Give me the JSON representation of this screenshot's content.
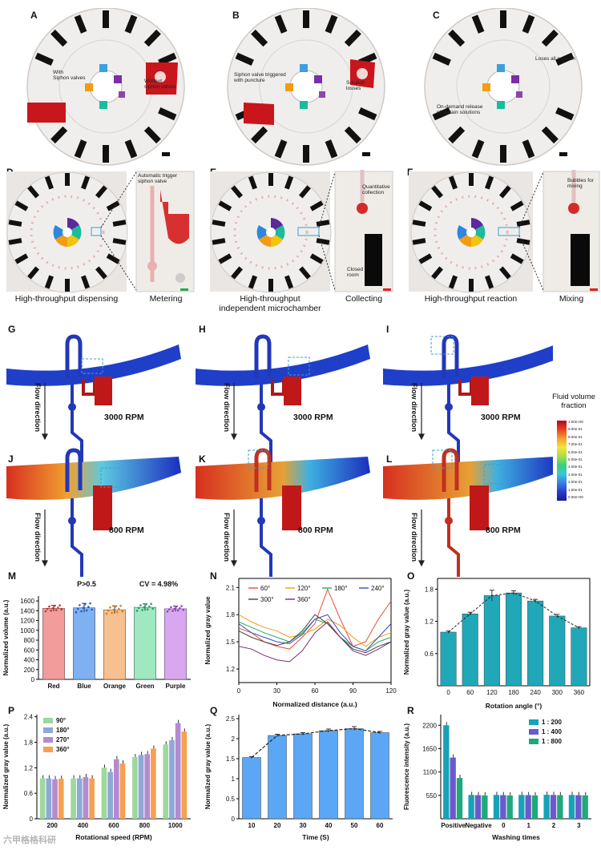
{
  "figure": {
    "panel_labels": [
      "A",
      "B",
      "C",
      "D",
      "E",
      "F",
      "G",
      "H",
      "I",
      "J",
      "K",
      "L",
      "M",
      "N",
      "O",
      "P",
      "Q",
      "R"
    ],
    "top": {
      "a_ann_left": "With\nSiphon valves",
      "a_ann_right": "Without\nsiphon valves",
      "b_ann_left": "Siphon valve triggered\nwith puncture",
      "b_ann_right": "Solution\nlosses",
      "c_ann_right": "Loses all solution",
      "c_ann_left": "On-demand release\nof certain solutions"
    },
    "middle": {
      "d_zoom_ann": "Automatic trigger\nsiphon valve",
      "e_zoom_ann_top": "Quantitative\ncollection",
      "e_zoom_ann_bottom": "Closed\nroom",
      "f_zoom_ann": "Bubbles for\nmixing",
      "captions": [
        "High-throughput dispensing",
        "Metering",
        "High-throughput\nindependent microchamber",
        "Collecting",
        "High-throughput reaction",
        "Mixing"
      ]
    },
    "sim": {
      "rpm_high": "3000 RPM",
      "rpm_low": "800 RPM",
      "flow": "Flow direction",
      "legend_title": "Fluid volume\nfraction",
      "legend_ticks": [
        "1.00e+00",
        "9.00e-01",
        "8.00e-01",
        "7.00e-01",
        "6.00e-01",
        "5.00e-01",
        "4.00e-01",
        "3.00e-01",
        "2.00e-01",
        "1.00e-01",
        "0.00e+00"
      ]
    },
    "watermark": "六甲格格科研"
  },
  "chart_data": [
    {
      "panel": "M",
      "type": "bar",
      "categories": [
        "Red",
        "Blue",
        "Orange",
        "Green",
        "Purple"
      ],
      "values": [
        1450,
        1460,
        1420,
        1470,
        1440
      ],
      "errors": [
        60,
        90,
        80,
        70,
        55
      ],
      "colors": [
        "#f29c9c",
        "#7eb0f2",
        "#f6c08f",
        "#9fe8c0",
        "#d9a7ef"
      ],
      "ylabel": "Normalized volume (a.u.)",
      "yticks": [
        0,
        200,
        400,
        600,
        800,
        1000,
        1200,
        1400,
        1600
      ],
      "ylim": [
        0,
        1700
      ],
      "annotations": [
        "P>0.5",
        "CV = 4.98%"
      ]
    },
    {
      "panel": "N",
      "type": "line",
      "x": [
        0,
        10,
        20,
        30,
        40,
        50,
        60,
        70,
        80,
        90,
        100,
        110,
        120
      ],
      "series": [
        {
          "name": "60°",
          "color": "#e74c3c",
          "values": [
            1.65,
            1.6,
            1.5,
            1.45,
            1.42,
            1.55,
            1.7,
            2.08,
            1.75,
            1.45,
            1.5,
            1.75,
            1.95
          ]
        },
        {
          "name": "120°",
          "color": "#f39c12",
          "values": [
            1.8,
            1.72,
            1.66,
            1.62,
            1.55,
            1.58,
            1.64,
            1.75,
            1.68,
            1.55,
            1.45,
            1.55,
            1.6
          ]
        },
        {
          "name": "180°",
          "color": "#27ae60",
          "values": [
            1.72,
            1.66,
            1.6,
            1.55,
            1.5,
            1.6,
            1.75,
            1.7,
            1.55,
            1.45,
            1.4,
            1.5,
            1.55
          ]
        },
        {
          "name": "240°",
          "color": "#3b4cc0",
          "values": [
            1.7,
            1.6,
            1.55,
            1.5,
            1.48,
            1.58,
            1.75,
            1.8,
            1.6,
            1.45,
            1.4,
            1.55,
            1.7
          ]
        },
        {
          "name": "300°",
          "color": "#444444",
          "values": [
            1.62,
            1.55,
            1.5,
            1.46,
            1.5,
            1.62,
            1.8,
            1.7,
            1.55,
            1.42,
            1.38,
            1.45,
            1.5
          ]
        },
        {
          "name": "360°",
          "color": "#7a2e7a",
          "values": [
            1.45,
            1.42,
            1.35,
            1.3,
            1.28,
            1.4,
            1.6,
            1.72,
            1.55,
            1.4,
            1.35,
            1.42,
            1.5
          ]
        }
      ],
      "xlabel": "Normalized distance (a.u.)",
      "ylabel": "Normalized gray value",
      "xticks": [
        0,
        30,
        60,
        90,
        120
      ],
      "yticks": [
        1.2,
        1.5,
        1.8,
        2.1
      ],
      "xlim": [
        0,
        120
      ],
      "ylim": [
        1.05,
        2.2
      ]
    },
    {
      "panel": "O",
      "type": "bar",
      "categories": [
        "0",
        "60",
        "120",
        "180",
        "240",
        "300",
        "360"
      ],
      "values": [
        1.0,
        1.34,
        1.68,
        1.73,
        1.58,
        1.3,
        1.08
      ],
      "errors": [
        0.02,
        0.03,
        0.1,
        0.04,
        0.03,
        0.03,
        0.02
      ],
      "color": "#20a8b8",
      "xlabel": "Rotation angle (°)",
      "ylabel": "Normalized gray value (a.u.)",
      "yticks": [
        0.6,
        1.2,
        1.8
      ],
      "ylim": [
        0,
        2.0
      ]
    },
    {
      "panel": "P",
      "type": "bar",
      "categories": [
        "200",
        "400",
        "600",
        "800",
        "1000"
      ],
      "series": [
        {
          "name": "90°",
          "color": "#9ed89e",
          "values": [
            0.95,
            0.95,
            1.2,
            1.45,
            1.75
          ]
        },
        {
          "name": "180°",
          "color": "#8fa8d8",
          "values": [
            0.95,
            0.95,
            1.1,
            1.5,
            1.85
          ]
        },
        {
          "name": "270°",
          "color": "#b48ad0",
          "values": [
            0.93,
            0.98,
            1.4,
            1.52,
            2.25
          ]
        },
        {
          "name": "360°",
          "color": "#f5a053",
          "values": [
            0.94,
            0.95,
            1.3,
            1.65,
            2.05
          ]
        }
      ],
      "xlabel": "Rotational speed (RPM)",
      "ylabel": "Normalized gray value (a.u.)",
      "yticks": [
        0.0,
        0.6,
        1.2,
        1.8,
        2.4
      ],
      "ylim": [
        0,
        2.45
      ]
    },
    {
      "panel": "Q",
      "type": "bar",
      "categories": [
        "10",
        "20",
        "30",
        "40",
        "50",
        "60"
      ],
      "values": [
        1.53,
        2.08,
        2.12,
        2.2,
        2.25,
        2.15
      ],
      "errors": [
        0.02,
        0.03,
        0.03,
        0.04,
        0.05,
        0.03
      ],
      "color": "#5ba7f5",
      "xlabel": "Time (S)",
      "ylabel": "Normalized gray value (a.u.)",
      "yticks": [
        0.0,
        0.5,
        1.0,
        1.5,
        2.0,
        2.5
      ],
      "ylim": [
        0,
        2.6
      ]
    },
    {
      "panel": "R",
      "type": "bar",
      "categories": [
        "Positive",
        "Negative",
        "0",
        "1",
        "2",
        "3"
      ],
      "series": [
        {
          "name": "1 : 200",
          "color": "#17a2b8",
          "values": [
            2200,
            560,
            560,
            560,
            565,
            560
          ]
        },
        {
          "name": "1 : 400",
          "color": "#6a5acd",
          "values": [
            1440,
            555,
            555,
            555,
            560,
            555
          ]
        },
        {
          "name": "1 : 800",
          "color": "#20a87a",
          "values": [
            960,
            550,
            550,
            550,
            555,
            550
          ]
        }
      ],
      "xlabel": "Washing times",
      "ylabel": "Fluorescence intensity (a.u.)",
      "yticks": [
        550,
        1100,
        1650,
        2200
      ],
      "ylim": [
        0,
        2450
      ]
    }
  ]
}
